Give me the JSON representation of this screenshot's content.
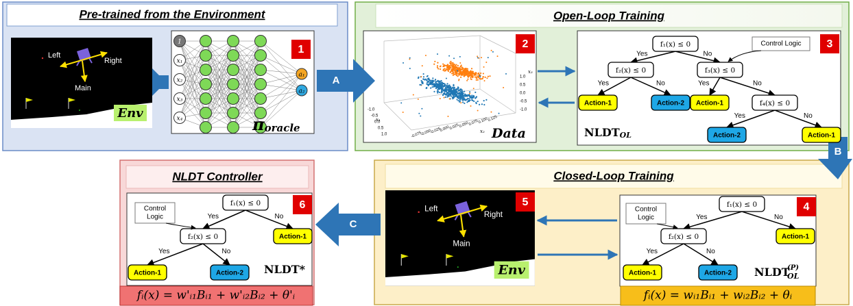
{
  "pretrained": {
    "title": "Pre-trained from the Environment",
    "badge": "1",
    "env": {
      "left": "Left",
      "right": "Right",
      "main": "Main",
      "tag": "Env"
    },
    "network": {
      "inputs": [
        "1",
        "x₁",
        "x₂",
        "x₃",
        "x₄"
      ],
      "outputs": [
        "a₁",
        "a₂"
      ],
      "policy": {
        "symbol": "π",
        "subscript": "oracle"
      }
    }
  },
  "open_loop": {
    "title": "Open-Loop Training",
    "data": {
      "badge": "2",
      "caption": "Data",
      "z_ticks": [
        "1.0",
        "0.5",
        "0.0",
        "-0.5",
        "-1.0"
      ],
      "x_ticks": [
        "-1.0",
        "-0.5",
        "0.0",
        "0.5",
        "1.0"
      ],
      "y_ticks": [
        "-0.075",
        "-0.050",
        "-0.025",
        "0.000",
        "0.025",
        "0.050",
        "0.075",
        "0.100",
        "0.125"
      ],
      "axis_labels": [
        "x₁",
        "x₂",
        "x₃"
      ]
    },
    "tree": {
      "badge": "3",
      "nodes": [
        "f₁(x) ≤ 0",
        "f₂(x) ≤ 0",
        "f₃(x) ≤ 0",
        "f₄(x) ≤ 0"
      ],
      "leaves": [
        "Action-1",
        "Action-2",
        "Action-1",
        "Action-2",
        "Action-1"
      ],
      "edges": [
        "Yes",
        "No",
        "Yes",
        "No",
        "Yes",
        "No",
        "Yes",
        "No"
      ],
      "callout": [
        "Control Logic"
      ],
      "name": "NLDT",
      "name_sub": "OL"
    }
  },
  "closed_loop": {
    "title": "Closed-Loop Training",
    "env": {
      "badge": "5",
      "left": "Left",
      "right": "Right",
      "main": "Main",
      "tag": "Env"
    },
    "tree": {
      "badge": "4",
      "nodes": [
        "f₁(x) ≤ 0",
        "f₂(x) ≤ 0"
      ],
      "leaves": [
        "Action-1",
        "Action-1",
        "Action-2"
      ],
      "edges": [
        "Yes",
        "No",
        "Yes",
        "No"
      ],
      "callout": [
        "Control",
        "Logic"
      ],
      "name": "NLDT",
      "name_sub": "OL",
      "name_sup": "(P)"
    },
    "formula": "fᵢ(x) = wᵢ₁Bᵢ₁ + wᵢ₂Bᵢ₂ + θᵢ"
  },
  "controller": {
    "title": "NLDT Controller",
    "tree": {
      "badge": "6",
      "nodes": [
        "f₁(x) ≤ 0",
        "f₂(x) ≤ 0"
      ],
      "leaves": [
        "Action-1",
        "Action-1",
        "Action-2"
      ],
      "edges": [
        "Yes",
        "No",
        "Yes",
        "No"
      ],
      "callout": [
        "Control",
        "Logic"
      ],
      "name": "NLDT*"
    },
    "formula": "fᵢ(x) = w'ᵢ₁Bᵢ₁ + w'ᵢ₂Bᵢ₂ + θ'ᵢ"
  },
  "arrows": {
    "a": "A",
    "b": "B",
    "c": "C"
  }
}
